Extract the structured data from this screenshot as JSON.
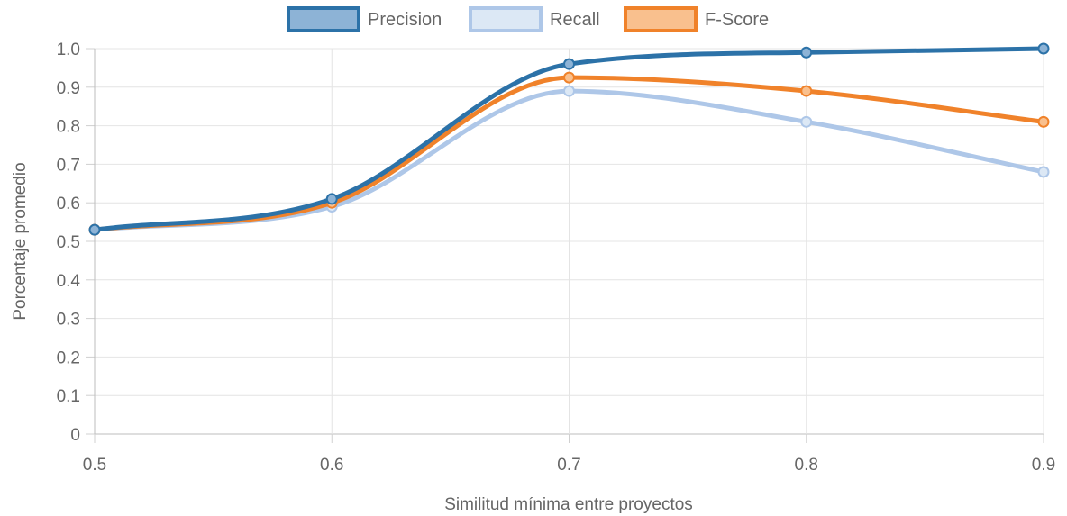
{
  "chart_data": {
    "type": "line",
    "x": [
      0.5,
      0.6,
      0.7,
      0.8,
      0.9
    ],
    "x_tick_labels": [
      "0.5",
      "0.6",
      "0.7",
      "0.8",
      "0.9"
    ],
    "y_ticks": [
      0,
      0.1,
      0.2,
      0.3,
      0.4,
      0.5,
      0.6,
      0.7,
      0.8,
      0.9,
      1.0
    ],
    "y_tick_labels": [
      "0",
      "0.1",
      "0.2",
      "0.3",
      "0.4",
      "0.5",
      "0.6",
      "0.7",
      "0.8",
      "0.9",
      "1.0"
    ],
    "series": [
      {
        "name": "Precision",
        "values": [
          0.53,
          0.61,
          0.96,
          0.99,
          1.0
        ],
        "color": "#2c72a8",
        "fill": "#8db3d6"
      },
      {
        "name": "Recall",
        "values": [
          0.53,
          0.59,
          0.89,
          0.81,
          0.68
        ],
        "color": "#aec7e8",
        "fill": "#dce8f5"
      },
      {
        "name": "F-Score",
        "values": [
          0.53,
          0.6,
          0.925,
          0.89,
          0.81
        ],
        "color": "#f0822a",
        "fill": "#f9c08e"
      }
    ],
    "xlabel": "Similitud mínima entre proyectos",
    "ylabel": "Porcentaje promedio",
    "xlim": [
      0.5,
      0.9
    ],
    "ylim": [
      0,
      1.0
    ],
    "grid": true,
    "legend_position": "top-center"
  }
}
